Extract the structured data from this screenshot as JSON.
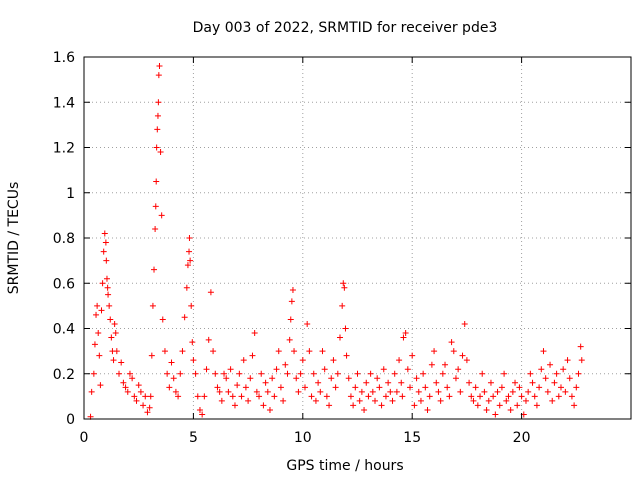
{
  "chart_data": {
    "type": "scatter",
    "title": "Day 003 of 2022, SRMTID for receiver pde3",
    "xlabel": "GPS time / hours",
    "ylabel": "SRMTID / TECUs",
    "xlim": [
      0,
      25
    ],
    "ylim": [
      0,
      1.6
    ],
    "xticks": [
      0,
      5,
      10,
      15,
      20
    ],
    "yticks": [
      0,
      0.2,
      0.4,
      0.6,
      0.8,
      1,
      1.2,
      1.4,
      1.6
    ],
    "xtick_labels": [
      "0",
      "5",
      "10",
      "15",
      "20"
    ],
    "ytick_labels": [
      "0",
      "0.2",
      "0.4",
      "0.6",
      "0.8",
      "1",
      "1.2",
      "1.4",
      "1.6"
    ],
    "grid": true,
    "marker": "+",
    "color": "#ff0000",
    "series": [
      {
        "name": "SRMTID",
        "x": [
          0.3,
          0.35,
          0.45,
          0.5,
          0.55,
          0.6,
          0.65,
          0.7,
          0.75,
          0.8,
          0.85,
          0.9,
          0.95,
          1.0,
          1.02,
          1.05,
          1.08,
          1.1,
          1.15,
          1.2,
          1.25,
          1.3,
          1.35,
          1.4,
          1.45,
          1.5,
          1.6,
          1.7,
          1.8,
          1.9,
          2.0,
          2.1,
          2.2,
          2.3,
          2.4,
          2.5,
          2.6,
          2.7,
          2.8,
          2.9,
          3.0,
          3.05,
          3.1,
          3.15,
          3.2,
          3.25,
          3.28,
          3.3,
          3.32,
          3.35,
          3.38,
          3.4,
          3.42,
          3.45,
          3.5,
          3.55,
          3.6,
          3.7,
          3.8,
          3.9,
          4.0,
          4.1,
          4.2,
          4.3,
          4.4,
          4.5,
          4.6,
          4.7,
          4.75,
          4.8,
          4.82,
          4.85,
          4.9,
          4.95,
          5.0,
          5.1,
          5.2,
          5.3,
          5.4,
          5.5,
          5.6,
          5.7,
          5.8,
          5.9,
          6.0,
          6.1,
          6.2,
          6.3,
          6.4,
          6.5,
          6.6,
          6.7,
          6.8,
          6.9,
          7.0,
          7.1,
          7.2,
          7.3,
          7.4,
          7.5,
          7.6,
          7.7,
          7.8,
          7.9,
          8.0,
          8.1,
          8.2,
          8.3,
          8.4,
          8.5,
          8.6,
          8.7,
          8.8,
          8.9,
          9.0,
          9.1,
          9.2,
          9.3,
          9.4,
          9.45,
          9.5,
          9.55,
          9.6,
          9.7,
          9.8,
          9.9,
          10.0,
          10.1,
          10.2,
          10.3,
          10.4,
          10.5,
          10.6,
          10.7,
          10.8,
          10.9,
          11.0,
          11.1,
          11.2,
          11.3,
          11.4,
          11.5,
          11.6,
          11.7,
          11.8,
          11.85,
          11.9,
          11.95,
          12.0,
          12.1,
          12.2,
          12.3,
          12.4,
          12.5,
          12.6,
          12.7,
          12.8,
          12.9,
          13.0,
          13.1,
          13.2,
          13.3,
          13.4,
          13.5,
          13.6,
          13.7,
          13.8,
          13.9,
          14.0,
          14.1,
          14.2,
          14.3,
          14.4,
          14.5,
          14.55,
          14.6,
          14.7,
          14.8,
          14.9,
          15.0,
          15.1,
          15.2,
          15.3,
          15.4,
          15.5,
          15.6,
          15.7,
          15.8,
          15.9,
          16.0,
          16.1,
          16.2,
          16.3,
          16.4,
          16.5,
          16.6,
          16.7,
          16.8,
          16.9,
          17.0,
          17.1,
          17.2,
          17.3,
          17.4,
          17.5,
          17.6,
          17.7,
          17.8,
          17.9,
          18.0,
          18.1,
          18.2,
          18.3,
          18.4,
          18.5,
          18.6,
          18.7,
          18.8,
          18.9,
          19.0,
          19.1,
          19.2,
          19.3,
          19.4,
          19.5,
          19.6,
          19.7,
          19.8,
          19.9,
          20.0,
          20.1,
          20.2,
          20.3,
          20.4,
          20.5,
          20.6,
          20.7,
          20.8,
          20.9,
          21.0,
          21.1,
          21.2,
          21.3,
          21.4,
          21.5,
          21.6,
          21.7,
          21.8,
          21.9,
          22.0,
          22.1,
          22.2,
          22.3,
          22.4,
          22.5,
          22.6,
          22.7,
          22.75
        ],
        "y": [
          0.01,
          0.12,
          0.2,
          0.33,
          0.46,
          0.5,
          0.38,
          0.28,
          0.15,
          0.48,
          0.6,
          0.74,
          0.82,
          0.78,
          0.7,
          0.62,
          0.58,
          0.55,
          0.5,
          0.44,
          0.36,
          0.3,
          0.26,
          0.42,
          0.38,
          0.3,
          0.2,
          0.25,
          0.16,
          0.14,
          0.12,
          0.2,
          0.18,
          0.1,
          0.08,
          0.15,
          0.12,
          0.06,
          0.1,
          0.03,
          0.05,
          0.1,
          0.28,
          0.5,
          0.66,
          0.84,
          0.94,
          1.05,
          1.2,
          1.28,
          1.34,
          1.4,
          1.52,
          1.56,
          1.18,
          0.9,
          0.44,
          0.3,
          0.2,
          0.14,
          0.25,
          0.18,
          0.12,
          0.1,
          0.2,
          0.3,
          0.45,
          0.58,
          0.68,
          0.74,
          0.8,
          0.7,
          0.5,
          0.34,
          0.26,
          0.2,
          0.1,
          0.04,
          0.02,
          0.1,
          0.22,
          0.35,
          0.56,
          0.3,
          0.2,
          0.14,
          0.12,
          0.08,
          0.2,
          0.18,
          0.12,
          0.22,
          0.1,
          0.06,
          0.15,
          0.2,
          0.1,
          0.26,
          0.14,
          0.08,
          0.18,
          0.28,
          0.38,
          0.12,
          0.1,
          0.2,
          0.06,
          0.16,
          0.12,
          0.04,
          0.18,
          0.1,
          0.22,
          0.3,
          0.14,
          0.08,
          0.24,
          0.2,
          0.35,
          0.44,
          0.52,
          0.57,
          0.3,
          0.18,
          0.12,
          0.2,
          0.26,
          0.14,
          0.42,
          0.3,
          0.1,
          0.2,
          0.08,
          0.16,
          0.12,
          0.3,
          0.22,
          0.1,
          0.06,
          0.18,
          0.26,
          0.14,
          0.2,
          0.36,
          0.5,
          0.6,
          0.58,
          0.4,
          0.28,
          0.18,
          0.1,
          0.06,
          0.14,
          0.2,
          0.08,
          0.12,
          0.04,
          0.16,
          0.1,
          0.2,
          0.12,
          0.08,
          0.18,
          0.14,
          0.06,
          0.22,
          0.1,
          0.16,
          0.12,
          0.08,
          0.2,
          0.12,
          0.26,
          0.16,
          0.1,
          0.36,
          0.38,
          0.22,
          0.14,
          0.28,
          0.06,
          0.18,
          0.12,
          0.08,
          0.2,
          0.14,
          0.04,
          0.1,
          0.24,
          0.3,
          0.16,
          0.12,
          0.08,
          0.2,
          0.24,
          0.14,
          0.1,
          0.34,
          0.3,
          0.18,
          0.22,
          0.12,
          0.28,
          0.42,
          0.26,
          0.16,
          0.1,
          0.08,
          0.14,
          0.06,
          0.1,
          0.2,
          0.12,
          0.04,
          0.08,
          0.16,
          0.1,
          0.02,
          0.12,
          0.06,
          0.14,
          0.2,
          0.08,
          0.1,
          0.04,
          0.12,
          0.16,
          0.06,
          0.14,
          0.1,
          0.02,
          0.08,
          0.12,
          0.2,
          0.16,
          0.1,
          0.06,
          0.14,
          0.22,
          0.3,
          0.18,
          0.12,
          0.24,
          0.08,
          0.16,
          0.2,
          0.1,
          0.14,
          0.22,
          0.12,
          0.26,
          0.18,
          0.1,
          0.06,
          0.14,
          0.2,
          0.32,
          0.26
        ]
      }
    ]
  }
}
